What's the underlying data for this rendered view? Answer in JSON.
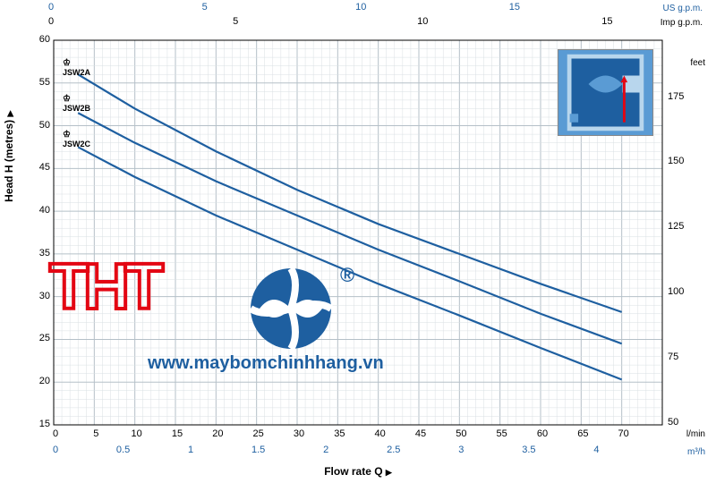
{
  "chart": {
    "type": "line",
    "title": "",
    "background_color": "#ffffff",
    "grid_minor_color": "#d9dfe3",
    "grid_major_color": "#b5c0c8",
    "curve_color": "#1e5fa0",
    "curve_width": 2.2,
    "xaxis": {
      "label": "Flow rate Q",
      "unit_primary": "l/min",
      "unit_secondary": "m³/h",
      "lim_primary": [
        0,
        75
      ],
      "ticks_primary": [
        0,
        5,
        10,
        15,
        20,
        25,
        30,
        35,
        40,
        45,
        50,
        55,
        60,
        65,
        70
      ],
      "ticks_secondary": [
        0,
        0.5,
        1,
        1.5,
        2,
        2.5,
        3,
        3.5,
        4
      ],
      "ticks_top_us": [
        0,
        5,
        10,
        15
      ],
      "ticks_top_imp": [
        0,
        5,
        10,
        15
      ],
      "unit_top_us": "US g.p.m.",
      "unit_top_imp": "Imp g.p.m.",
      "label_fontsize": 12
    },
    "yaxis": {
      "label": "Head H (metres)",
      "unit_right": "feet",
      "lim": [
        15,
        60
      ],
      "ticks": [
        15,
        20,
        25,
        30,
        35,
        40,
        45,
        50,
        55,
        60
      ],
      "ticks_right": [
        50,
        75,
        100,
        125,
        150,
        175
      ],
      "label_fontsize": 12
    },
    "series": [
      {
        "name": "JSW2A",
        "points": [
          [
            3,
            56
          ],
          [
            10,
            52
          ],
          [
            20,
            47
          ],
          [
            30,
            42.5
          ],
          [
            40,
            38.5
          ],
          [
            50,
            35
          ],
          [
            60,
            31.5
          ],
          [
            70,
            28.2
          ]
        ]
      },
      {
        "name": "JSW2B",
        "points": [
          [
            3,
            51.5
          ],
          [
            10,
            48
          ],
          [
            20,
            43.5
          ],
          [
            30,
            39.5
          ],
          [
            40,
            35.5
          ],
          [
            50,
            31.8
          ],
          [
            60,
            28
          ],
          [
            70,
            24.5
          ]
        ]
      },
      {
        "name": "JSW2C",
        "points": [
          [
            3,
            47.5
          ],
          [
            10,
            44
          ],
          [
            20,
            39.5
          ],
          [
            30,
            35.5
          ],
          [
            40,
            31.5
          ],
          [
            50,
            27.8
          ],
          [
            60,
            24
          ],
          [
            70,
            20.3
          ]
        ]
      }
    ]
  },
  "watermark": {
    "logo_text": "THT",
    "logo_color": "#e30613",
    "url": "www.maybomchinhhang.vn",
    "url_color": "#1e5fa0",
    "registered": "®"
  },
  "inset": {
    "background": "#5a9bd4",
    "accent1": "#1e5fa0",
    "accent2": "#e30613",
    "accent3": "#b8d6ed"
  }
}
